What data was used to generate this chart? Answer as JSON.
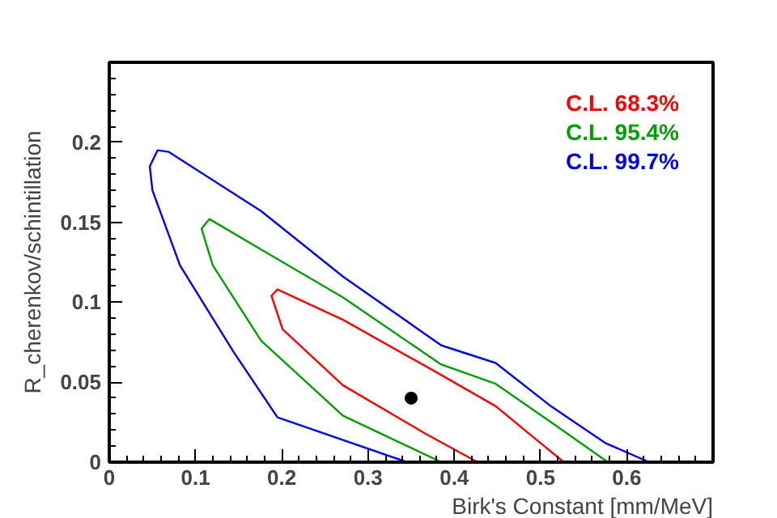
{
  "chart_data": {
    "type": "line",
    "xlabel": "Birk's Constant [mm/MeV]",
    "ylabel": "R_cherenkov/schintillation",
    "xlim": [
      0,
      0.7
    ],
    "ylim": [
      0,
      0.25
    ],
    "xticks": [
      0,
      0.1,
      0.2,
      0.3,
      0.4,
      0.5,
      0.6
    ],
    "yticks": [
      0,
      0.05,
      0.1,
      0.15,
      0.2
    ],
    "legend": "top right",
    "grid": false,
    "marker": "none",
    "series": [
      {
        "name": "C.L. 68.3%",
        "color": "#ff0000",
        "x": [
          0.427,
          0.366,
          0.271,
          0.201,
          0.188,
          0.195,
          0.271,
          0.38,
          0.448,
          0.493,
          0.527
        ],
        "values": [
          0,
          0.018,
          0.048,
          0.083,
          0.104,
          0.108,
          0.089,
          0.056,
          0.035,
          0.015,
          0
        ]
      },
      {
        "name": "C.L. 95.4%",
        "color": "#00a000",
        "x": [
          0.385,
          0.271,
          0.176,
          0.12,
          0.107,
          0.116,
          0.176,
          0.271,
          0.385,
          0.448,
          0.512,
          0.578
        ],
        "values": [
          0,
          0.029,
          0.076,
          0.123,
          0.146,
          0.152,
          0.133,
          0.103,
          0.061,
          0.049,
          0.025,
          0
        ]
      },
      {
        "name": "C.L. 99.7%",
        "color": "#0000ff",
        "x": [
          0.345,
          0.195,
          0.144,
          0.082,
          0.05,
          0.047,
          0.056,
          0.069,
          0.176,
          0.271,
          0.385,
          0.448,
          0.512,
          0.575,
          0.626
        ],
        "values": [
          0,
          0.028,
          0.069,
          0.123,
          0.17,
          0.185,
          0.195,
          0.194,
          0.157,
          0.116,
          0.073,
          0.062,
          0.035,
          0.012,
          0
        ]
      },
      {
        "type": "scatter",
        "marker": "circle",
        "color": "#000000",
        "x": [
          0.35
        ],
        "values": [
          0.04
        ]
      }
    ]
  }
}
